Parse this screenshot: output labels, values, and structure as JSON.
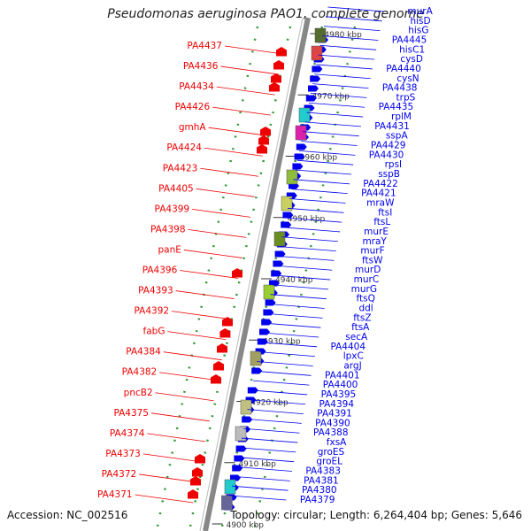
{
  "title": "Pseudomonas aeruginosa PAO1, complete genome",
  "accession": "Accession: NC_002516",
  "topology": "Topology: circular; Length: 6,264,404 bp; Genes: 5,646",
  "colors": {
    "forward": "#0000ee",
    "reverse": "#ee0000",
    "backbone": "#888888",
    "ticks": "#339933"
  },
  "ticks": [
    {
      "kbp": 4980,
      "label": "4980 kbp"
    },
    {
      "kbp": 4970,
      "label": "4970 kbp"
    },
    {
      "kbp": 4960,
      "label": "4960 kbp"
    },
    {
      "kbp": 4950,
      "label": "4950 kbp"
    },
    {
      "kbp": 4940,
      "label": "4940 kbp"
    },
    {
      "kbp": 4930,
      "label": "4930 kbp"
    },
    {
      "kbp": 4920,
      "label": "4920 kbp"
    },
    {
      "kbp": 4910,
      "label": "4910 kbp"
    },
    {
      "kbp": 4900,
      "label": "4900 kbp"
    }
  ],
  "left_labels": [
    "PA4437",
    "PA4436",
    "PA4434",
    "PA4426",
    "gmhA",
    "PA4424",
    "PA4423",
    "PA4405",
    "PA4399",
    "PA4398",
    "panE",
    "PA4396",
    "PA4393",
    "PA4392",
    "fabG",
    "PA4384",
    "PA4382",
    "pncB2",
    "PA4375",
    "PA4374",
    "PA4373",
    "PA4372",
    "PA4371"
  ],
  "right_labels": [
    "murA",
    "hisD",
    "hisG",
    "PA4445",
    "hisC1",
    "cysD",
    "PA4440",
    "cysN",
    "PA4438",
    "trpS",
    "PA4435",
    "rplM",
    "PA4431",
    "sspA",
    "PA4429",
    "PA4430",
    "rpsI",
    "sspB",
    "PA4422",
    "PA4421",
    "mraW",
    "ftsI",
    "ftsL",
    "murE",
    "mraY",
    "murF",
    "ftsW",
    "murD",
    "murC",
    "murG",
    "ftsQ",
    "ddl",
    "ftsZ",
    "ftsA",
    "secA",
    "PA4404",
    "lpxC",
    "argJ",
    "PA4401",
    "PA4400",
    "PA4395",
    "PA4394",
    "PA4391",
    "PA4390",
    "PA4388",
    "fxsA",
    "groES",
    "groEL",
    "PA4383",
    "PA4381",
    "PA4380",
    "PA4379"
  ]
}
